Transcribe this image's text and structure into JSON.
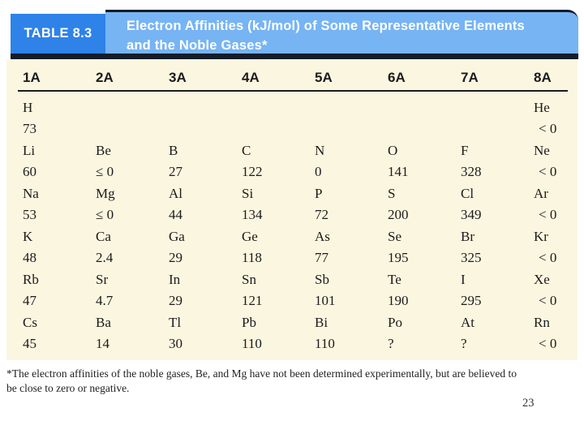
{
  "header": {
    "label": "TABLE 8.3",
    "title_line1": "Electron Affinities (kJ/mol) of Some Representative Elements",
    "title_line2": "and the Noble Gases*"
  },
  "table": {
    "columns": [
      "1A",
      "2A",
      "3A",
      "4A",
      "5A",
      "6A",
      "7A",
      "8A"
    ],
    "rows": [
      {
        "cells": [
          {
            "sym": "H",
            "val": "73"
          },
          {
            "sym": "",
            "val": ""
          },
          {
            "sym": "",
            "val": ""
          },
          {
            "sym": "",
            "val": ""
          },
          {
            "sym": "",
            "val": ""
          },
          {
            "sym": "",
            "val": ""
          },
          {
            "sym": "",
            "val": ""
          },
          {
            "sym": "He",
            "val": "< 0"
          }
        ]
      },
      {
        "cells": [
          {
            "sym": "Li",
            "val": "60"
          },
          {
            "sym": "Be",
            "val": "≤ 0"
          },
          {
            "sym": "B",
            "val": "27"
          },
          {
            "sym": "C",
            "val": "122"
          },
          {
            "sym": "N",
            "val": "0"
          },
          {
            "sym": "O",
            "val": "141"
          },
          {
            "sym": "F",
            "val": "328"
          },
          {
            "sym": "Ne",
            "val": "< 0"
          }
        ]
      },
      {
        "cells": [
          {
            "sym": "Na",
            "val": "53"
          },
          {
            "sym": "Mg",
            "val": "≤ 0"
          },
          {
            "sym": "Al",
            "val": "44"
          },
          {
            "sym": "Si",
            "val": "134"
          },
          {
            "sym": "P",
            "val": "72"
          },
          {
            "sym": "S",
            "val": "200"
          },
          {
            "sym": "Cl",
            "val": "349"
          },
          {
            "sym": "Ar",
            "val": "< 0"
          }
        ]
      },
      {
        "cells": [
          {
            "sym": "K",
            "val": "48"
          },
          {
            "sym": "Ca",
            "val": "2.4"
          },
          {
            "sym": "Ga",
            "val": "29"
          },
          {
            "sym": "Ge",
            "val": "118"
          },
          {
            "sym": "As",
            "val": "77"
          },
          {
            "sym": "Se",
            "val": "195"
          },
          {
            "sym": "Br",
            "val": "325"
          },
          {
            "sym": "Kr",
            "val": "< 0"
          }
        ]
      },
      {
        "cells": [
          {
            "sym": "Rb",
            "val": "47"
          },
          {
            "sym": "Sr",
            "val": "4.7"
          },
          {
            "sym": "In",
            "val": "29"
          },
          {
            "sym": "Sn",
            "val": "121"
          },
          {
            "sym": "Sb",
            "val": "101"
          },
          {
            "sym": "Te",
            "val": "190"
          },
          {
            "sym": "I",
            "val": "295"
          },
          {
            "sym": "Xe",
            "val": "< 0"
          }
        ]
      },
      {
        "cells": [
          {
            "sym": "Cs",
            "val": "45"
          },
          {
            "sym": "Ba",
            "val": "14"
          },
          {
            "sym": "Tl",
            "val": "30"
          },
          {
            "sym": "Pb",
            "val": "110"
          },
          {
            "sym": "Bi",
            "val": "110"
          },
          {
            "sym": "Po",
            "val": "?"
          },
          {
            "sym": "At",
            "val": "?"
          },
          {
            "sym": "Rn",
            "val": "< 0"
          }
        ]
      }
    ]
  },
  "footnote": {
    "line1": "*The electron affinities of the noble gases, Be, and Mg have not been determined experimentally, but are believed to",
    "line2": "be close to zero or negative."
  },
  "page_number": "23",
  "colors": {
    "label_blue": "#2e82e8",
    "banner_blue": "#77b4f4",
    "navy": "#131c28",
    "cream": "#fbf6e0"
  }
}
